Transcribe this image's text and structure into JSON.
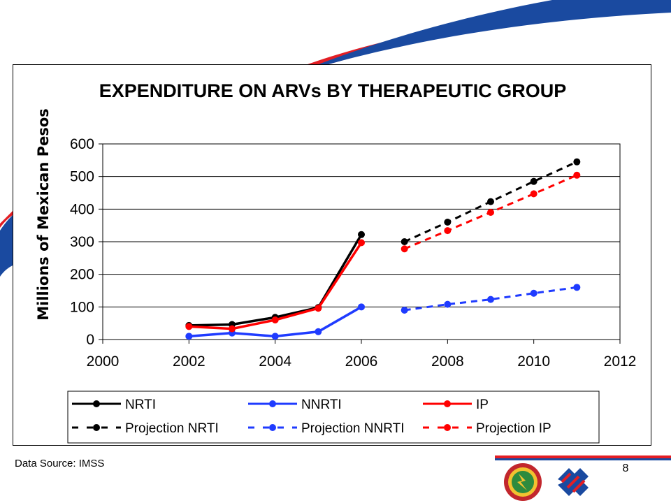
{
  "footer": {
    "source": "Data Source: IMSS",
    "page_number": "8"
  },
  "colors": {
    "NRTI": "#000000",
    "NNRTI": "#1f3bff",
    "IP": "#ff0000",
    "slide_red": "#e31e24",
    "slide_blue": "#1a4aa0"
  },
  "chart_data": {
    "type": "line",
    "title": "EXPENDITURE ON ARVs BY THERAPEUTIC GROUP",
    "xlabel": "",
    "ylabel": "Millions of Mexican Pesos",
    "xlim": [
      2000,
      2012
    ],
    "ylim": [
      0,
      600
    ],
    "x_ticks": [
      2000,
      2002,
      2004,
      2006,
      2008,
      2010,
      2012
    ],
    "y_ticks": [
      0,
      100,
      200,
      300,
      400,
      500,
      600
    ],
    "grid": "horizontal",
    "legend_position": "bottom",
    "series": [
      {
        "name": "NRTI",
        "color": "#000000",
        "style": "solid",
        "x": [
          2002,
          2003,
          2004,
          2005,
          2006
        ],
        "y": [
          43,
          46,
          68,
          98,
          322
        ]
      },
      {
        "name": "NNRTI",
        "color": "#1f3bff",
        "style": "solid",
        "x": [
          2002,
          2003,
          2004,
          2005,
          2006
        ],
        "y": [
          10,
          20,
          10,
          24,
          100
        ]
      },
      {
        "name": "IP",
        "color": "#ff0000",
        "style": "solid",
        "x": [
          2002,
          2003,
          2004,
          2005,
          2006
        ],
        "y": [
          40,
          33,
          60,
          96,
          297
        ]
      },
      {
        "name": "Projection NRTI",
        "color": "#000000",
        "style": "dashed",
        "x": [
          2007,
          2008,
          2009,
          2010,
          2011
        ],
        "y": [
          300,
          360,
          423,
          485,
          545
        ]
      },
      {
        "name": "Projection NNRTI",
        "color": "#1f3bff",
        "style": "dashed",
        "x": [
          2007,
          2008,
          2009,
          2010,
          2011
        ],
        "y": [
          90,
          108,
          123,
          142,
          160
        ]
      },
      {
        "name": "Projection IP",
        "color": "#ff0000",
        "style": "dashed",
        "x": [
          2007,
          2008,
          2009,
          2010,
          2011
        ],
        "y": [
          278,
          334,
          390,
          447,
          504
        ]
      }
    ]
  }
}
